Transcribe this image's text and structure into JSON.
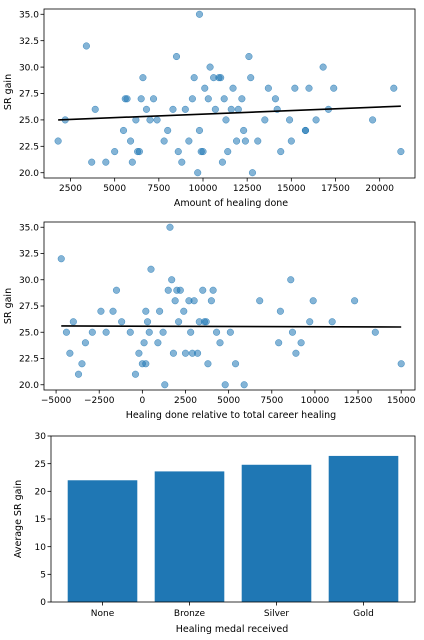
{
  "chart_data": [
    {
      "type": "scatter",
      "xlabel": "Amount of healing done",
      "ylabel": "SR gain",
      "xlim": [
        1000,
        22000
      ],
      "ylim": [
        19.5,
        35.5
      ],
      "xticks": [
        2500,
        5000,
        7500,
        10000,
        12500,
        15000,
        17500,
        20000
      ],
      "yticks": [
        20.0,
        22.5,
        25.0,
        27.5,
        30.0,
        32.5,
        35.0
      ],
      "point_color": "#1f77b4",
      "trend": {
        "x": [
          1800,
          21200
        ],
        "y": [
          25.0,
          26.3
        ]
      },
      "points": [
        [
          1800,
          23
        ],
        [
          2200,
          25
        ],
        [
          3400,
          32
        ],
        [
          3700,
          21
        ],
        [
          3900,
          26
        ],
        [
          4500,
          21
        ],
        [
          5000,
          22
        ],
        [
          5500,
          24
        ],
        [
          5600,
          27
        ],
        [
          5700,
          27
        ],
        [
          5900,
          23
        ],
        [
          6000,
          21
        ],
        [
          6200,
          25
        ],
        [
          6300,
          22
        ],
        [
          6400,
          22
        ],
        [
          6500,
          27
        ],
        [
          6600,
          29
        ],
        [
          6800,
          26
        ],
        [
          7000,
          25
        ],
        [
          7200,
          27
        ],
        [
          7400,
          25
        ],
        [
          7800,
          23
        ],
        [
          8000,
          24
        ],
        [
          8300,
          26
        ],
        [
          8500,
          31
        ],
        [
          8600,
          22
        ],
        [
          8800,
          21
        ],
        [
          9000,
          26
        ],
        [
          9200,
          23
        ],
        [
          9400,
          27
        ],
        [
          9500,
          29
        ],
        [
          9700,
          20
        ],
        [
          9800,
          35
        ],
        [
          9800,
          24
        ],
        [
          9900,
          22
        ],
        [
          10000,
          22
        ],
        [
          10100,
          28
        ],
        [
          10300,
          27
        ],
        [
          10400,
          30
        ],
        [
          10600,
          29
        ],
        [
          10700,
          26
        ],
        [
          10900,
          29
        ],
        [
          11000,
          29
        ],
        [
          11100,
          21
        ],
        [
          11200,
          27
        ],
        [
          11300,
          25
        ],
        [
          11400,
          22
        ],
        [
          11600,
          26
        ],
        [
          11700,
          28
        ],
        [
          11900,
          23
        ],
        [
          12000,
          26
        ],
        [
          12200,
          27
        ],
        [
          12300,
          24
        ],
        [
          12400,
          23
        ],
        [
          12600,
          31
        ],
        [
          12700,
          29
        ],
        [
          12800,
          20
        ],
        [
          13100,
          23
        ],
        [
          13500,
          25
        ],
        [
          13700,
          28
        ],
        [
          14100,
          27
        ],
        [
          14200,
          26
        ],
        [
          14400,
          22
        ],
        [
          14900,
          25
        ],
        [
          15000,
          23
        ],
        [
          15200,
          28
        ],
        [
          15800,
          24
        ],
        [
          15800,
          24
        ],
        [
          16000,
          28
        ],
        [
          16400,
          25
        ],
        [
          16800,
          30
        ],
        [
          17100,
          26
        ],
        [
          17400,
          28
        ],
        [
          19600,
          25
        ],
        [
          20800,
          28
        ],
        [
          21200,
          22
        ]
      ]
    },
    {
      "type": "scatter",
      "xlabel": "Healing done relative to total career healing",
      "ylabel": "SR gain",
      "xlim": [
        -5700,
        15800
      ],
      "ylim": [
        19.5,
        35.5
      ],
      "xticks": [
        -5000,
        -2500,
        0,
        2500,
        5000,
        7500,
        10000,
        12500,
        15000
      ],
      "yticks": [
        20.0,
        22.5,
        25.0,
        27.5,
        30.0,
        32.5,
        35.0
      ],
      "point_color": "#1f77b4",
      "trend": {
        "x": [
          -4700,
          15000
        ],
        "y": [
          25.6,
          25.5
        ]
      },
      "points": [
        [
          -4700,
          32
        ],
        [
          -4400,
          25
        ],
        [
          -4200,
          23
        ],
        [
          -4000,
          26
        ],
        [
          -3700,
          21
        ],
        [
          -3500,
          22
        ],
        [
          -3300,
          24
        ],
        [
          -2900,
          25
        ],
        [
          -2400,
          27
        ],
        [
          -2100,
          25
        ],
        [
          -1700,
          27
        ],
        [
          -1500,
          29
        ],
        [
          -1200,
          26
        ],
        [
          -700,
          25
        ],
        [
          -400,
          21
        ],
        [
          -200,
          23
        ],
        [
          0,
          22
        ],
        [
          100,
          24
        ],
        [
          200,
          27
        ],
        [
          200,
          22
        ],
        [
          300,
          26
        ],
        [
          400,
          25
        ],
        [
          500,
          31
        ],
        [
          900,
          24
        ],
        [
          1000,
          27
        ],
        [
          1200,
          25
        ],
        [
          1300,
          20
        ],
        [
          1500,
          29
        ],
        [
          1600,
          35
        ],
        [
          1700,
          30
        ],
        [
          1800,
          23
        ],
        [
          1900,
          28
        ],
        [
          2000,
          29
        ],
        [
          2100,
          26
        ],
        [
          2200,
          29
        ],
        [
          2400,
          27
        ],
        [
          2500,
          23
        ],
        [
          2700,
          28
        ],
        [
          2800,
          25
        ],
        [
          2900,
          23
        ],
        [
          3000,
          28
        ],
        [
          3200,
          23
        ],
        [
          3300,
          26
        ],
        [
          3500,
          29
        ],
        [
          3600,
          26
        ],
        [
          3700,
          26
        ],
        [
          3800,
          22
        ],
        [
          4000,
          28
        ],
        [
          4100,
          29
        ],
        [
          4300,
          25
        ],
        [
          4500,
          24
        ],
        [
          4800,
          20
        ],
        [
          5100,
          25
        ],
        [
          5400,
          22
        ],
        [
          5900,
          20
        ],
        [
          6800,
          28
        ],
        [
          7900,
          24
        ],
        [
          8000,
          27
        ],
        [
          8600,
          30
        ],
        [
          8700,
          25
        ],
        [
          8900,
          23
        ],
        [
          9200,
          24
        ],
        [
          9700,
          26
        ],
        [
          9900,
          28
        ],
        [
          11000,
          26
        ],
        [
          12300,
          28
        ],
        [
          13500,
          25
        ],
        [
          15000,
          22
        ]
      ]
    },
    {
      "type": "bar",
      "xlabel": "Healing medal received",
      "ylabel": "Average SR gain",
      "categories": [
        "None",
        "Bronze",
        "Silver",
        "Gold"
      ],
      "values": [
        22.0,
        23.6,
        24.8,
        26.4
      ],
      "ylim": [
        0,
        30
      ],
      "yticks": [
        0,
        5,
        10,
        15,
        20,
        25,
        30
      ],
      "bar_color": "#1f77b4"
    }
  ]
}
